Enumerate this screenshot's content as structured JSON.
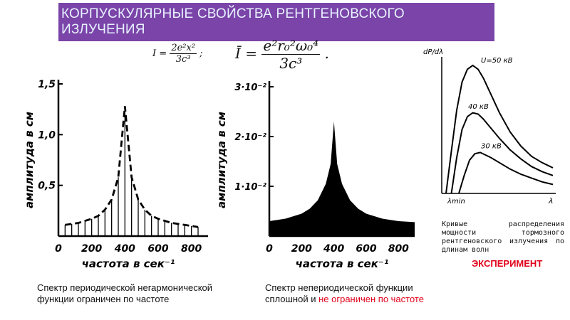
{
  "slide": {
    "title": "КОРПУСКУЛЯРНЫЕ СВОЙСТВА РЕНТГЕНОВСКОГО ИЗЛУЧЕНИЯ",
    "formula_small": {
      "lhs": "I",
      "num": "2e²x²",
      "den": "3c³",
      "tail": ";"
    },
    "formula_large": {
      "lhs": "Ī",
      "num": "e²r₀²ω₀⁴",
      "den": "3c³",
      "tail": "."
    },
    "caption_left": "Спектр периодической негармонической функции ограничен по частоте",
    "caption_mid_prefix": "Спектр непериодической функции сплошной и ",
    "caption_mid_highlight": "не ограничен по частоте",
    "experiment_label": "ЭКСПЕРИМЕНТ",
    "experiment_caption": "Кривые распределения мощности тормозного рентгеновского излучения по длинам волн"
  },
  "chart_data": [
    {
      "type": "bar",
      "xlabel": "частота в сек⁻¹",
      "ylabel": "амплитуда в см",
      "xlim": [
        0,
        900
      ],
      "ylim": [
        0,
        1.5
      ],
      "x_ticks": [
        "0",
        "200",
        "400",
        "600",
        "800"
      ],
      "y_ticks": [
        "0,5",
        "1,0",
        "1,5"
      ],
      "x": [
        40,
        80,
        120,
        160,
        200,
        240,
        280,
        320,
        360,
        400,
        440,
        480,
        520,
        560,
        600,
        640,
        680,
        720,
        760,
        800,
        840
      ],
      "values": [
        0.11,
        0.12,
        0.13,
        0.15,
        0.17,
        0.2,
        0.26,
        0.36,
        0.58,
        1.28,
        0.58,
        0.36,
        0.26,
        0.2,
        0.17,
        0.15,
        0.13,
        0.12,
        0.11,
        0.1,
        0.09
      ],
      "envelope": "dashed"
    },
    {
      "type": "area",
      "xlabel": "частота в сек⁻¹",
      "ylabel": "амплитуда в см",
      "xlim": [
        0,
        900
      ],
      "ylim": [
        0,
        3
      ],
      "x_ticks": [
        "0",
        "200",
        "400",
        "600",
        "800"
      ],
      "y_ticks": [
        "1·10⁻²",
        "2·10⁻²",
        "3·10⁻²"
      ],
      "x": [
        0,
        100,
        200,
        250,
        300,
        350,
        380,
        400,
        420,
        450,
        500,
        550,
        600,
        700,
        800,
        900
      ],
      "values": [
        0.3,
        0.35,
        0.45,
        0.55,
        0.72,
        1.05,
        1.45,
        2.3,
        1.45,
        1.05,
        0.72,
        0.55,
        0.45,
        0.35,
        0.3,
        0.28
      ]
    },
    {
      "type": "line",
      "xlabel": "λ",
      "ylabel": "dP/dλ",
      "annotations": [
        "λmin"
      ],
      "series": [
        {
          "name": "U=50 кВ",
          "x": [
            0.0,
            0.05,
            0.1,
            0.15,
            0.2,
            0.25,
            0.3,
            0.35,
            0.4,
            0.5,
            0.6,
            0.7,
            0.8,
            0.9,
            1.0
          ],
          "values": [
            0.0,
            0.33,
            0.65,
            0.87,
            0.97,
            1.0,
            0.97,
            0.9,
            0.81,
            0.63,
            0.48,
            0.37,
            0.29,
            0.24,
            0.2
          ]
        },
        {
          "name": "40 кВ",
          "x": [
            0.05,
            0.1,
            0.15,
            0.2,
            0.25,
            0.3,
            0.35,
            0.4,
            0.5,
            0.6,
            0.7,
            0.8,
            0.9,
            1.0
          ],
          "values": [
            0.0,
            0.28,
            0.5,
            0.6,
            0.63,
            0.62,
            0.58,
            0.53,
            0.43,
            0.34,
            0.27,
            0.21,
            0.17,
            0.14
          ]
        },
        {
          "name": "30 кВ",
          "x": [
            0.12,
            0.17,
            0.22,
            0.27,
            0.32,
            0.37,
            0.42,
            0.5,
            0.6,
            0.7,
            0.8,
            0.9,
            1.0
          ],
          "values": [
            0.0,
            0.14,
            0.26,
            0.31,
            0.32,
            0.3,
            0.28,
            0.24,
            0.19,
            0.15,
            0.12,
            0.09,
            0.07
          ]
        }
      ]
    }
  ]
}
